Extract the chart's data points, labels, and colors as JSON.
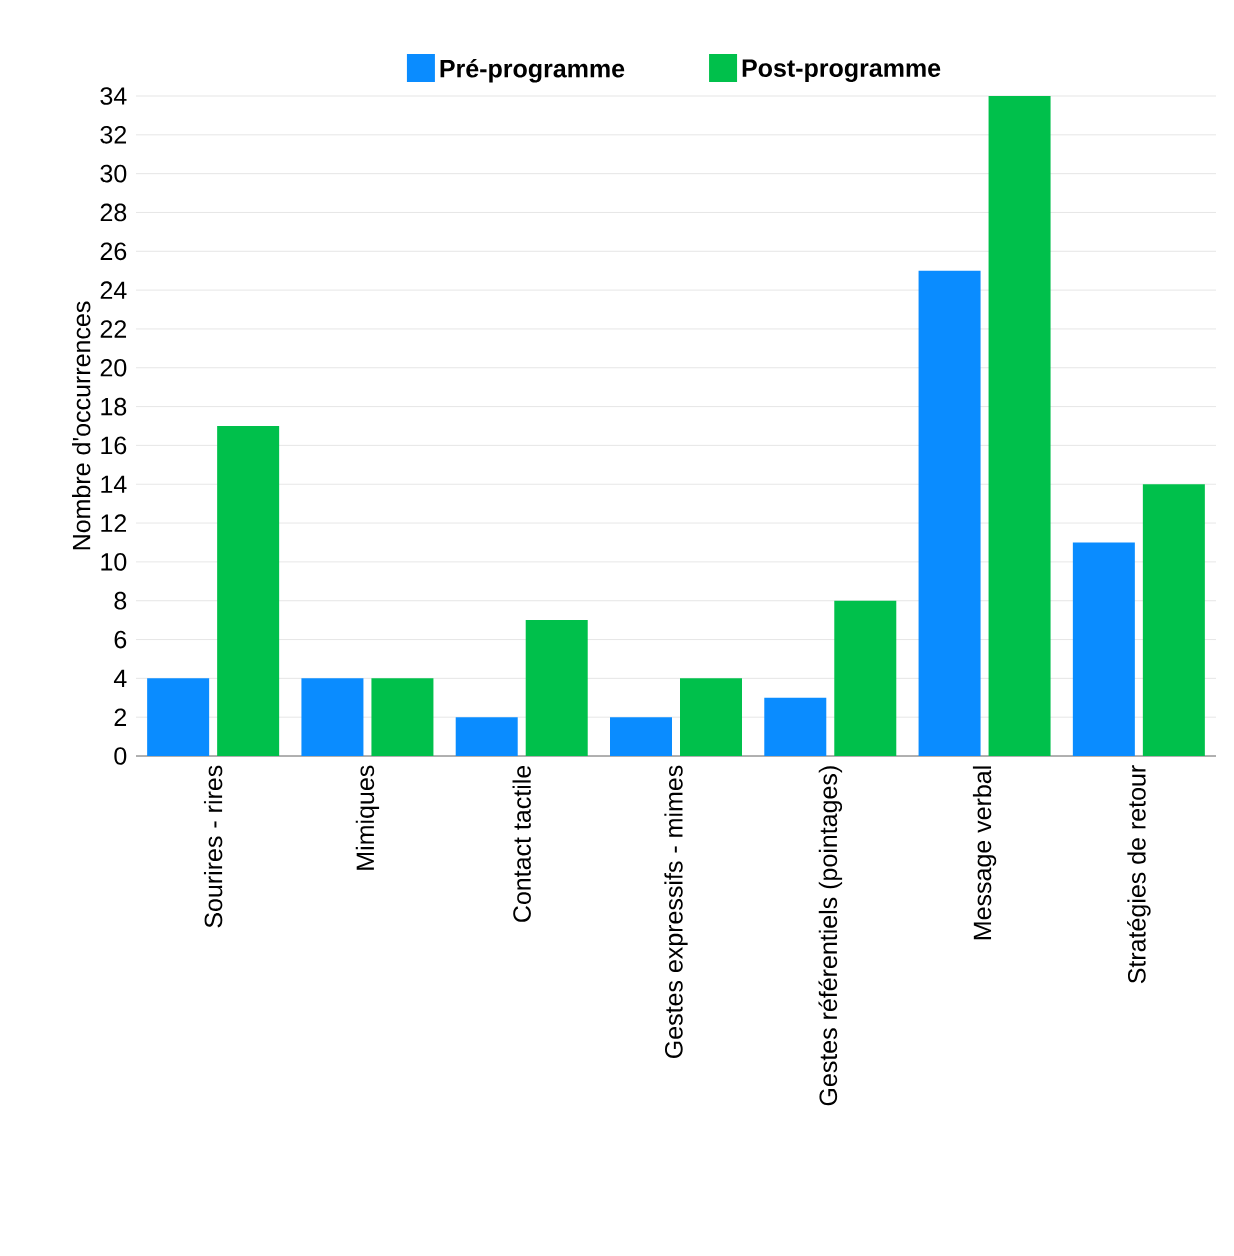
{
  "chart_data": {
    "type": "bar",
    "ylabel": "Nombre d'occurrences",
    "categories": [
      "Sourires - rires",
      "Mimiques",
      "Contact tactile",
      "Gestes expressifs - mimes",
      "Gestes référentiels (pointages)",
      "Message verbal",
      "Stratégies de retour"
    ],
    "series": [
      {
        "name": "Pré-programme",
        "color": "#0a8cff",
        "values": [
          4,
          4,
          2,
          2,
          3,
          25,
          11
        ]
      },
      {
        "name": "Post-programme",
        "color": "#00c04b",
        "values": [
          17,
          4,
          7,
          4,
          8,
          34,
          14
        ]
      }
    ],
    "ylim": [
      0,
      34
    ],
    "yticks": [
      0,
      2,
      4,
      6,
      8,
      10,
      12,
      14,
      16,
      18,
      20,
      22,
      24,
      26,
      28,
      30,
      32,
      34
    ],
    "grid": "y",
    "legend": "top"
  }
}
